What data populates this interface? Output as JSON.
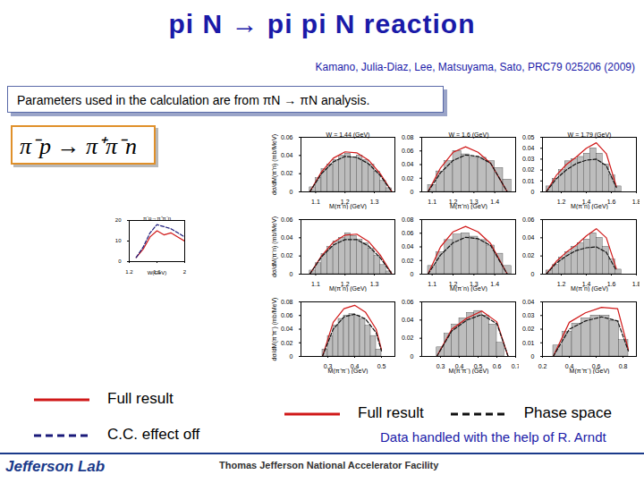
{
  "slide": {
    "title": "pi N → pi pi N reaction",
    "citation": "Kamano, Julia-Diaz, Lee, Matsuyama, Sato, PRC79 025206 (2009)",
    "note": "Parameters used in the calculation are from πN → πN analysis.",
    "reaction": "π⁻p → π⁺π⁻n",
    "credit": "Data handled with the help of R. Arndt",
    "footer_lab": "Jefferson Lab",
    "footer_facility": "Thomas Jefferson National Accelerator Facility"
  },
  "chart_data": [
    {
      "type": "line",
      "title": "π⁻p→π⁺π⁻n",
      "xlabel": "W(GeV)",
      "legend": "bottom",
      "xlim": [
        1.2,
        2.0
      ],
      "xticks": [
        1.2,
        1.6,
        2
      ],
      "ylim": [
        0,
        20
      ],
      "yticks": [
        0,
        10,
        20
      ],
      "x": [
        1.3,
        1.4,
        1.5,
        1.6,
        1.7,
        1.8,
        1.9,
        2.0
      ],
      "series": [
        {
          "name": "Full result",
          "color": "#d01818",
          "line_style": "solid",
          "values": [
            2,
            6,
            12,
            15,
            13,
            14,
            12,
            10
          ]
        },
        {
          "name": "C.C. effect off",
          "color": "#1a1a7a",
          "line_style": "dashed",
          "values": [
            2,
            7,
            14,
            18,
            17,
            16,
            14,
            12
          ]
        }
      ]
    },
    {
      "type": "histogram",
      "title": "W = 1.44 (GeV)",
      "xlabel": "M(π⁺n) (GeV)",
      "ylabel": "dσ/dM(π⁺n) (mb/MeV)",
      "legend": "bottom",
      "color": "#bdbdbd",
      "xlim": [
        1.05,
        1.37
      ],
      "xticks": [
        1.1,
        1.2,
        1.3
      ],
      "ylim": [
        0,
        0.06
      ],
      "yticks": [
        0,
        0.02,
        0.04,
        0.06
      ],
      "bins": [
        1.08,
        1.1,
        1.12,
        1.14,
        1.16,
        1.18,
        1.2,
        1.22,
        1.24,
        1.26,
        1.28,
        1.3,
        1.32,
        1.34,
        1.36
      ],
      "counts": [
        0.005,
        0.015,
        0.025,
        0.03,
        0.035,
        0.04,
        0.042,
        0.038,
        0.04,
        0.035,
        0.03,
        0.022,
        0.012,
        0.004
      ],
      "x": [
        1.08,
        1.12,
        1.16,
        1.2,
        1.24,
        1.28,
        1.32,
        1.36
      ],
      "series": [
        {
          "name": "Full result",
          "color": "#d01818",
          "line_style": "solid",
          "values": [
            0,
            0.022,
            0.037,
            0.044,
            0.043,
            0.035,
            0.02,
            0
          ]
        },
        {
          "name": "Phase space",
          "color": "#111111",
          "line_style": "dashed",
          "values": [
            0,
            0.02,
            0.033,
            0.039,
            0.038,
            0.031,
            0.018,
            0
          ]
        }
      ]
    },
    {
      "type": "histogram",
      "title": "W = 1.6 (GeV)",
      "xlabel": "M(π⁺n) (GeV)",
      "color": "#bdbdbd",
      "xlim": [
        1.05,
        1.5
      ],
      "xticks": [
        1.1,
        1.2,
        1.3,
        1.4
      ],
      "ylim": [
        0,
        0.08
      ],
      "yticks": [
        0,
        0.02,
        0.04,
        0.06,
        0.08
      ],
      "bins": [
        1.08,
        1.12,
        1.16,
        1.2,
        1.24,
        1.28,
        1.32,
        1.36,
        1.4,
        1.44,
        1.48
      ],
      "counts": [
        0.01,
        0.03,
        0.045,
        0.06,
        0.055,
        0.05,
        0.05,
        0.045,
        0.035,
        0.018
      ],
      "x": [
        1.08,
        1.14,
        1.2,
        1.26,
        1.32,
        1.38,
        1.46
      ],
      "series": [
        {
          "name": "Full result",
          "color": "#d01818",
          "line_style": "solid",
          "values": [
            0,
            0.035,
            0.058,
            0.066,
            0.058,
            0.042,
            0
          ]
        },
        {
          "name": "Phase space",
          "color": "#111111",
          "line_style": "dashed",
          "values": [
            0,
            0.028,
            0.046,
            0.054,
            0.052,
            0.042,
            0
          ]
        }
      ]
    },
    {
      "type": "histogram",
      "title": "W = 1.79 (GeV)",
      "xlabel": "M(π⁺n) (GeV)",
      "color": "#bdbdbd",
      "xlim": [
        1.05,
        1.8
      ],
      "xticks": [
        1.2,
        1.4,
        1.6,
        1.8
      ],
      "ylim": [
        0,
        0.05
      ],
      "yticks": [
        0,
        0.01,
        0.02,
        0.03,
        0.04,
        0.05
      ],
      "bins": [
        1.08,
        1.13,
        1.18,
        1.23,
        1.28,
        1.33,
        1.38,
        1.43,
        1.48,
        1.53,
        1.58,
        1.63,
        1.68
      ],
      "counts": [
        0.005,
        0.012,
        0.02,
        0.028,
        0.03,
        0.032,
        0.035,
        0.04,
        0.035,
        0.025,
        0.015,
        0.005
      ],
      "x": [
        1.08,
        1.16,
        1.24,
        1.32,
        1.4,
        1.48,
        1.56,
        1.64
      ],
      "series": [
        {
          "name": "Full result",
          "color": "#d01818",
          "line_style": "solid",
          "values": [
            0,
            0.015,
            0.025,
            0.032,
            0.04,
            0.045,
            0.035,
            0.005
          ]
        },
        {
          "name": "Phase space",
          "color": "#111111",
          "line_style": "dashed",
          "values": [
            0,
            0.012,
            0.02,
            0.026,
            0.029,
            0.03,
            0.024,
            0.004
          ]
        }
      ]
    },
    {
      "type": "histogram",
      "xlabel": "M(π⁻n) (GeV)",
      "ylabel": "dσ/dM(π⁻n) (mb/MeV)",
      "color": "#bdbdbd",
      "xlim": [
        1.05,
        1.37
      ],
      "xticks": [
        1.1,
        1.2,
        1.3
      ],
      "ylim": [
        0,
        0.06
      ],
      "yticks": [
        0,
        0.02,
        0.04,
        0.06
      ],
      "bins": [
        1.08,
        1.1,
        1.12,
        1.14,
        1.16,
        1.18,
        1.2,
        1.22,
        1.24,
        1.26,
        1.28,
        1.3,
        1.32,
        1.34,
        1.36
      ],
      "counts": [
        0.004,
        0.012,
        0.022,
        0.03,
        0.036,
        0.04,
        0.045,
        0.042,
        0.038,
        0.034,
        0.028,
        0.02,
        0.01,
        0.003
      ],
      "x": [
        1.08,
        1.12,
        1.16,
        1.2,
        1.24,
        1.28,
        1.32,
        1.36
      ],
      "series": [
        {
          "name": "Full result",
          "color": "#d01818",
          "line_style": "solid",
          "values": [
            0,
            0.02,
            0.035,
            0.043,
            0.044,
            0.036,
            0.021,
            0
          ]
        },
        {
          "name": "Phase space",
          "color": "#111111",
          "line_style": "dashed",
          "values": [
            0,
            0.019,
            0.032,
            0.038,
            0.038,
            0.031,
            0.018,
            0
          ]
        }
      ]
    },
    {
      "type": "histogram",
      "xlabel": "M(π⁻n) (GeV)",
      "color": "#bdbdbd",
      "xlim": [
        1.05,
        1.5
      ],
      "xticks": [
        1.1,
        1.2,
        1.3,
        1.4
      ],
      "ylim": [
        0,
        0.08
      ],
      "yticks": [
        0,
        0.02,
        0.04,
        0.06,
        0.08
      ],
      "bins": [
        1.08,
        1.12,
        1.16,
        1.2,
        1.24,
        1.28,
        1.32,
        1.36,
        1.4,
        1.44,
        1.48
      ],
      "counts": [
        0.012,
        0.032,
        0.05,
        0.058,
        0.06,
        0.055,
        0.05,
        0.042,
        0.03,
        0.012
      ],
      "x": [
        1.08,
        1.14,
        1.2,
        1.26,
        1.32,
        1.38,
        1.46
      ],
      "series": [
        {
          "name": "Full result",
          "color": "#d01818",
          "line_style": "solid",
          "values": [
            0,
            0.04,
            0.062,
            0.07,
            0.062,
            0.045,
            0
          ]
        },
        {
          "name": "Phase space",
          "color": "#111111",
          "line_style": "dashed",
          "values": [
            0,
            0.028,
            0.046,
            0.054,
            0.052,
            0.042,
            0
          ]
        }
      ]
    },
    {
      "type": "histogram",
      "xlabel": "M(π⁻n) (GeV)",
      "color": "#bdbdbd",
      "xlim": [
        1.05,
        1.8
      ],
      "xticks": [
        1.2,
        1.4,
        1.6,
        1.8
      ],
      "ylim": [
        0,
        0.06
      ],
      "yticks": [
        0,
        0.02,
        0.04,
        0.06
      ],
      "bins": [
        1.08,
        1.13,
        1.18,
        1.23,
        1.28,
        1.33,
        1.38,
        1.43,
        1.48,
        1.53,
        1.58,
        1.63,
        1.68
      ],
      "counts": [
        0.004,
        0.01,
        0.018,
        0.024,
        0.03,
        0.034,
        0.038,
        0.045,
        0.04,
        0.03,
        0.016,
        0.005
      ],
      "x": [
        1.08,
        1.16,
        1.24,
        1.32,
        1.4,
        1.48,
        1.56,
        1.64
      ],
      "series": [
        {
          "name": "Full result",
          "color": "#d01818",
          "line_style": "solid",
          "values": [
            0,
            0.014,
            0.024,
            0.032,
            0.042,
            0.05,
            0.04,
            0.006
          ]
        },
        {
          "name": "Phase space",
          "color": "#111111",
          "line_style": "dashed",
          "values": [
            0,
            0.012,
            0.02,
            0.026,
            0.029,
            0.03,
            0.024,
            0.004
          ]
        }
      ]
    },
    {
      "type": "histogram",
      "xlabel": "M(π⁺π⁻) (GeV)",
      "ylabel": "dσ/dM(π⁺π⁻) (mb/MeV)",
      "color": "#bdbdbd",
      "xlim": [
        0.2,
        0.55
      ],
      "xticks": [
        0.3,
        0.4,
        0.5
      ],
      "ylim": [
        0,
        0.08
      ],
      "yticks": [
        0,
        0.02,
        0.04,
        0.06,
        0.08
      ],
      "bins": [
        0.28,
        0.3,
        0.32,
        0.34,
        0.36,
        0.38,
        0.4,
        0.42,
        0.44,
        0.46,
        0.48,
        0.5
      ],
      "counts": [
        0.01,
        0.03,
        0.045,
        0.055,
        0.06,
        0.062,
        0.06,
        0.055,
        0.045,
        0.03,
        0.01
      ],
      "x": [
        0.28,
        0.32,
        0.36,
        0.4,
        0.44,
        0.48,
        0.5
      ],
      "series": [
        {
          "name": "Full result",
          "color": "#d01818",
          "line_style": "solid",
          "values": [
            0,
            0.05,
            0.07,
            0.075,
            0.065,
            0.04,
            0.01
          ]
        },
        {
          "name": "Phase space",
          "color": "#111111",
          "line_style": "dashed",
          "values": [
            0,
            0.04,
            0.058,
            0.062,
            0.055,
            0.035,
            0.008
          ]
        }
      ]
    },
    {
      "type": "histogram",
      "xlabel": "M(π⁺π⁻) (GeV)",
      "color": "#bdbdbd",
      "xlim": [
        0.2,
        0.7
      ],
      "xticks": [
        0.3,
        0.4,
        0.5,
        0.6,
        0.7
      ],
      "ylim": [
        0,
        0.06
      ],
      "yticks": [
        0,
        0.02,
        0.04,
        0.06
      ],
      "bins": [
        0.28,
        0.32,
        0.36,
        0.4,
        0.44,
        0.48,
        0.52,
        0.56,
        0.6,
        0.64
      ],
      "counts": [
        0.01,
        0.025,
        0.035,
        0.042,
        0.048,
        0.05,
        0.045,
        0.035,
        0.015
      ],
      "x": [
        0.28,
        0.36,
        0.44,
        0.52,
        0.6,
        0.66
      ],
      "series": [
        {
          "name": "Full result",
          "color": "#d01818",
          "line_style": "solid",
          "values": [
            0,
            0.03,
            0.042,
            0.05,
            0.038,
            0
          ]
        },
        {
          "name": "Phase space",
          "color": "#111111",
          "line_style": "dashed",
          "values": [
            0,
            0.028,
            0.04,
            0.046,
            0.036,
            0
          ]
        }
      ]
    },
    {
      "type": "histogram",
      "xlabel": "M(π⁺π⁻) (GeV)",
      "color": "#bdbdbd",
      "xlim": [
        0.2,
        0.9
      ],
      "xticks": [
        0.2,
        0.4,
        0.6,
        0.8
      ],
      "ylim": [
        0,
        0.04
      ],
      "yticks": [
        0,
        0.01,
        0.02,
        0.03,
        0.04
      ],
      "bins": [
        0.28,
        0.35,
        0.42,
        0.49,
        0.56,
        0.63,
        0.7,
        0.77,
        0.84
      ],
      "counts": [
        0.008,
        0.018,
        0.024,
        0.028,
        0.03,
        0.03,
        0.026,
        0.012
      ],
      "x": [
        0.28,
        0.4,
        0.52,
        0.64,
        0.76,
        0.84
      ],
      "series": [
        {
          "name": "Full result",
          "color": "#d01818",
          "line_style": "solid",
          "values": [
            0,
            0.025,
            0.032,
            0.036,
            0.035,
            0.005
          ]
        },
        {
          "name": "Phase space",
          "color": "#111111",
          "line_style": "dashed",
          "values": [
            0,
            0.02,
            0.026,
            0.029,
            0.026,
            0.004
          ]
        }
      ]
    }
  ]
}
